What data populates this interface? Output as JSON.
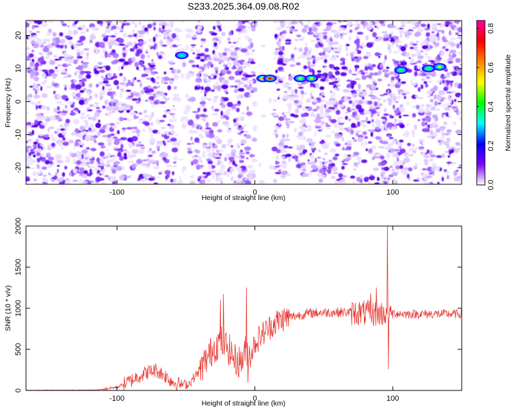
{
  "title": "S233.2025.364.09.08.R02",
  "chart_data": [
    {
      "type": "heatmap",
      "xlabel": "Height of straight line (km)",
      "ylabel": "Frequency (Hz)",
      "xlim": [
        -166,
        150
      ],
      "ylim": [
        -25,
        24.5
      ],
      "xticks": [
        -100,
        0,
        100
      ],
      "yticks": [
        -20,
        -10,
        0,
        10,
        20
      ],
      "gap_band_x": [
        0,
        14
      ],
      "colorbar": {
        "label": "Normalized spectral amplitude",
        "range": [
          0,
          0.84
        ],
        "ticks": [
          0.0,
          0.2,
          0.4,
          0.6,
          0.8
        ],
        "tick_labels": [
          "0.0",
          "0.2",
          "0.4",
          "0.6",
          "0.8"
        ],
        "colors": [
          "#ffffff",
          "#8000ff",
          "#0000ff",
          "#00ffff",
          "#00ff00",
          "#ffff00",
          "#ff8000",
          "#ff0000",
          "#ff00a0"
        ]
      },
      "peaks": [
        {
          "x": 6,
          "y": 7,
          "value": 0.62
        },
        {
          "x": 11,
          "y": 7,
          "value": 0.82
        },
        {
          "x": 33,
          "y": 7,
          "value": 0.45
        },
        {
          "x": 41,
          "y": 7,
          "value": 0.5
        },
        {
          "x": -53,
          "y": 14,
          "value": 0.3
        },
        {
          "x": 106,
          "y": 9.5,
          "value": 0.35
        },
        {
          "x": 126,
          "y": 10,
          "value": 0.4
        },
        {
          "x": 134,
          "y": 10.5,
          "value": 0.45
        }
      ]
    },
    {
      "type": "line",
      "xlabel": "Height of straight line (km)",
      "ylabel": "SNR (10 * v/v)",
      "xlim": [
        -166,
        150
      ],
      "ylim": [
        0,
        2000
      ],
      "xticks": [
        -100,
        0,
        100
      ],
      "yticks": [
        0,
        500,
        1000,
        1500,
        2000
      ],
      "color": "#e8352e",
      "profile": [
        [
          -166,
          2
        ],
        [
          -115,
          5
        ],
        [
          -100,
          40
        ],
        [
          -92,
          100
        ],
        [
          -85,
          170
        ],
        [
          -78,
          220
        ],
        [
          -72,
          250
        ],
        [
          -66,
          190
        ],
        [
          -60,
          110
        ],
        [
          -54,
          70
        ],
        [
          -48,
          80
        ],
        [
          -42,
          200
        ],
        [
          -36,
          350
        ],
        [
          -30,
          520
        ],
        [
          -25,
          600
        ],
        [
          -20,
          530
        ],
        [
          -14,
          360
        ],
        [
          -10,
          350
        ],
        [
          -6,
          500
        ],
        [
          -3,
          430
        ],
        [
          0,
          580
        ],
        [
          5,
          680
        ],
        [
          10,
          760
        ],
        [
          16,
          840
        ],
        [
          22,
          880
        ],
        [
          30,
          910
        ],
        [
          40,
          940
        ],
        [
          50,
          950
        ],
        [
          60,
          950
        ],
        [
          70,
          950
        ],
        [
          80,
          940
        ],
        [
          90,
          930
        ],
        [
          96,
          950
        ],
        [
          100,
          940
        ],
        [
          110,
          930
        ],
        [
          120,
          930
        ],
        [
          130,
          930
        ],
        [
          140,
          930
        ],
        [
          150,
          930
        ]
      ],
      "spikes": [
        {
          "x": -25,
          "y": 1100
        },
        {
          "x": -23,
          "y": 1170
        },
        {
          "x": -6,
          "y": 1250
        },
        {
          "x": -5,
          "y": 100
        },
        {
          "x": 84,
          "y": 1180
        },
        {
          "x": 88,
          "y": 1250
        },
        {
          "x": 96,
          "y": 2000
        },
        {
          "x": 97,
          "y": 260
        }
      ]
    }
  ]
}
